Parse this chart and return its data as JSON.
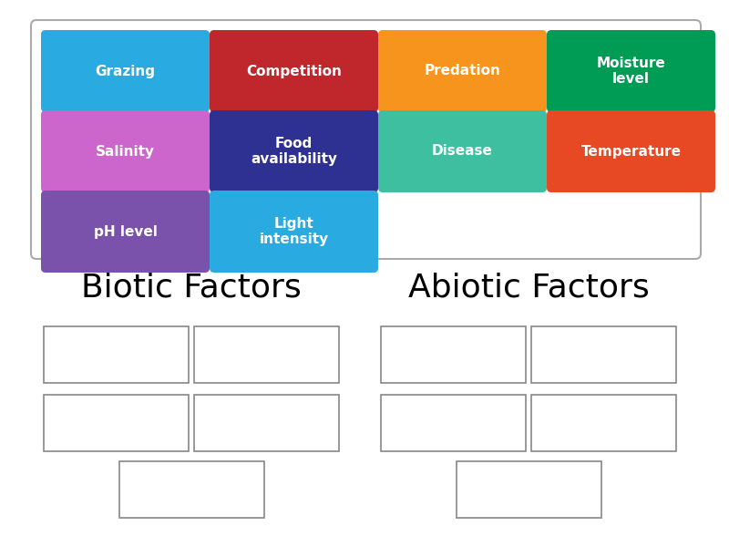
{
  "background_color": "#ffffff",
  "top_box_border": "#aaaaaa",
  "cards": [
    {
      "label": "Grazing",
      "color": "#29abe2",
      "row": 0,
      "col": 0
    },
    {
      "label": "Competition",
      "color": "#c0272d",
      "row": 0,
      "col": 1
    },
    {
      "label": "Predation",
      "color": "#f7941d",
      "row": 0,
      "col": 2
    },
    {
      "label": "Moisture\nlevel",
      "color": "#009b55",
      "row": 0,
      "col": 3
    },
    {
      "label": "Salinity",
      "color": "#cc66cc",
      "row": 1,
      "col": 0
    },
    {
      "label": "Food\navailability",
      "color": "#2e3192",
      "row": 1,
      "col": 1
    },
    {
      "label": "Disease",
      "color": "#3dbfa0",
      "row": 1,
      "col": 2
    },
    {
      "label": "Temperature",
      "color": "#e84925",
      "row": 1,
      "col": 3
    },
    {
      "label": "pH level",
      "color": "#7b52ab",
      "row": 2,
      "col": 0
    },
    {
      "label": "Light\nintensity",
      "color": "#29abe2",
      "row": 2,
      "col": 1
    }
  ],
  "section_titles": [
    "Biotic Factors",
    "Abiotic Factors"
  ],
  "card_font_size": 11,
  "section_font_size": 26
}
